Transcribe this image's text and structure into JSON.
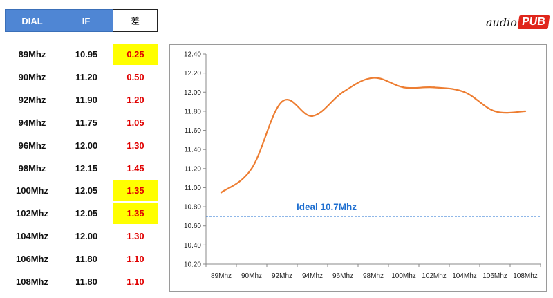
{
  "table": {
    "headers": {
      "dial": "DIAL",
      "if": "IF",
      "diff": "差"
    },
    "rows": [
      {
        "dial": "89Mhz",
        "if": "10.95",
        "diff": "0.25",
        "highlight": true
      },
      {
        "dial": "90Mhz",
        "if": "11.20",
        "diff": "0.50",
        "highlight": false
      },
      {
        "dial": "92Mhz",
        "if": "11.90",
        "diff": "1.20",
        "highlight": false
      },
      {
        "dial": "94Mhz",
        "if": "11.75",
        "diff": "1.05",
        "highlight": false
      },
      {
        "dial": "96Mhz",
        "if": "12.00",
        "diff": "1.30",
        "highlight": false
      },
      {
        "dial": "98Mhz",
        "if": "12.15",
        "diff": "1.45",
        "highlight": false
      },
      {
        "dial": "100Mhz",
        "if": "12.05",
        "diff": "1.35",
        "highlight": true
      },
      {
        "dial": "102Mhz",
        "if": "12.05",
        "diff": "1.35",
        "highlight": true
      },
      {
        "dial": "104Mhz",
        "if": "12.00",
        "diff": "1.30",
        "highlight": false
      },
      {
        "dial": "106Mhz",
        "if": "11.80",
        "diff": "1.10",
        "highlight": false
      },
      {
        "dial": "108Mhz",
        "if": "11.80",
        "diff": "1.10",
        "highlight": false
      }
    ],
    "highlight_color": "#ffff00",
    "header_color": "#4f86d4",
    "diff_color": "#e00000"
  },
  "logo": {
    "left_text": "audio",
    "right_text": "PUB",
    "brand_color": "#e0261b"
  },
  "chart_data": {
    "type": "line",
    "title": "",
    "xlabel": "",
    "ylabel": "",
    "categories": [
      "89Mhz",
      "90Mhz",
      "92Mhz",
      "94Mhz",
      "96Mhz",
      "98Mhz",
      "100Mhz",
      "102Mhz",
      "104Mhz",
      "106Mhz",
      "108Mhz"
    ],
    "series": [
      {
        "values": [
          10.95,
          11.2,
          11.9,
          11.75,
          12.0,
          12.15,
          12.05,
          12.05,
          12.0,
          11.8,
          11.8
        ],
        "color": "#ed7d31",
        "smooth": true
      }
    ],
    "ylim": [
      10.2,
      12.4
    ],
    "yticks": [
      "10.20",
      "10.40",
      "10.60",
      "10.80",
      "11.00",
      "11.20",
      "11.40",
      "11.60",
      "11.80",
      "12.00",
      "12.20",
      "12.40"
    ],
    "grid": false,
    "reference_line": {
      "value": 10.7,
      "label": "Ideal 10.7Mhz",
      "color": "#1f6fd0",
      "style": "dashed"
    }
  }
}
